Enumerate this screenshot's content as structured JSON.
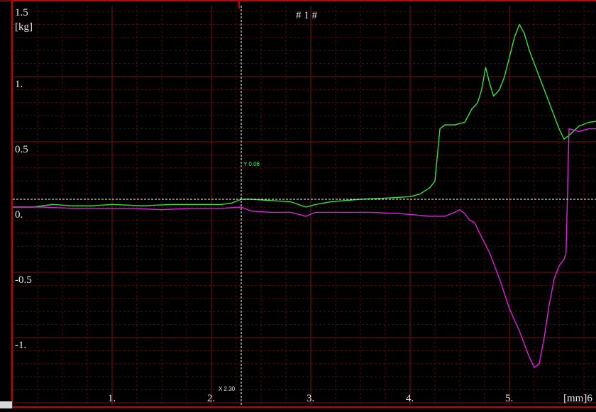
{
  "chart_data": {
    "type": "line",
    "title": "# 1 #",
    "ylabel_value": "1.5",
    "ylabel_unit": "[kg]",
    "xlabel": "[mm]6",
    "xlim": [
      0,
      5.9
    ],
    "ylim": [
      -1.35,
      1.5
    ],
    "y_ticks": [
      {
        "value": 1.0,
        "label": "1."
      },
      {
        "value": 0.5,
        "label": "0.5"
      },
      {
        "value": 0.0,
        "label": "0."
      },
      {
        "value": -0.5,
        "label": "-0.5"
      },
      {
        "value": -1.0,
        "label": "-1."
      }
    ],
    "x_ticks": [
      {
        "value": 1,
        "label": "1."
      },
      {
        "value": 2,
        "label": "2."
      },
      {
        "value": 3,
        "label": "3."
      },
      {
        "value": 4,
        "label": "4."
      },
      {
        "value": 5,
        "label": "5."
      }
    ],
    "grid": true,
    "cursor": {
      "x": 2.3,
      "y": 0.06,
      "x_label": "X 2.30",
      "y_label": "Y 0.06"
    },
    "series": [
      {
        "color": "#33e533",
        "points": [
          [
            0,
            0.0
          ],
          [
            0.2,
            0.0
          ],
          [
            0.4,
            0.02
          ],
          [
            0.6,
            0.01
          ],
          [
            0.8,
            0.01
          ],
          [
            1.0,
            0.02
          ],
          [
            1.3,
            0.01
          ],
          [
            1.6,
            0.02
          ],
          [
            1.9,
            0.02
          ],
          [
            2.1,
            0.02
          ],
          [
            2.2,
            0.03
          ],
          [
            2.3,
            0.06
          ],
          [
            2.4,
            0.06
          ],
          [
            2.6,
            0.05
          ],
          [
            2.8,
            0.04
          ],
          [
            2.95,
            0.0
          ],
          [
            3.05,
            0.02
          ],
          [
            3.2,
            0.04
          ],
          [
            3.5,
            0.06
          ],
          [
            3.8,
            0.07
          ],
          [
            4.0,
            0.08
          ],
          [
            4.1,
            0.1
          ],
          [
            4.2,
            0.15
          ],
          [
            4.25,
            0.2
          ],
          [
            4.3,
            0.6
          ],
          [
            4.35,
            0.63
          ],
          [
            4.45,
            0.63
          ],
          [
            4.55,
            0.65
          ],
          [
            4.62,
            0.75
          ],
          [
            4.68,
            0.8
          ],
          [
            4.72,
            0.9
          ],
          [
            4.76,
            1.07
          ],
          [
            4.8,
            0.95
          ],
          [
            4.84,
            0.85
          ],
          [
            4.9,
            0.9
          ],
          [
            4.95,
            1.0
          ],
          [
            5.0,
            1.15
          ],
          [
            5.05,
            1.3
          ],
          [
            5.1,
            1.4
          ],
          [
            5.15,
            1.33
          ],
          [
            5.2,
            1.2
          ],
          [
            5.3,
            1.0
          ],
          [
            5.4,
            0.8
          ],
          [
            5.45,
            0.7
          ],
          [
            5.5,
            0.6
          ],
          [
            5.55,
            0.52
          ],
          [
            5.6,
            0.55
          ],
          [
            5.7,
            0.62
          ],
          [
            5.8,
            0.65
          ],
          [
            5.9,
            0.66
          ]
        ]
      },
      {
        "color": "#e01ee0",
        "points": [
          [
            0,
            0.0
          ],
          [
            0.3,
            0.0
          ],
          [
            0.6,
            -0.01
          ],
          [
            0.9,
            -0.01
          ],
          [
            1.2,
            -0.01
          ],
          [
            1.5,
            -0.02
          ],
          [
            1.8,
            -0.01
          ],
          [
            2.1,
            -0.01
          ],
          [
            2.3,
            0.0
          ],
          [
            2.4,
            -0.03
          ],
          [
            2.6,
            -0.04
          ],
          [
            2.8,
            -0.04
          ],
          [
            2.95,
            -0.07
          ],
          [
            3.05,
            -0.04
          ],
          [
            3.3,
            -0.04
          ],
          [
            3.6,
            -0.04
          ],
          [
            3.9,
            -0.05
          ],
          [
            4.2,
            -0.07
          ],
          [
            4.35,
            -0.07
          ],
          [
            4.45,
            -0.04
          ],
          [
            4.5,
            -0.02
          ],
          [
            4.55,
            -0.05
          ],
          [
            4.6,
            -0.1
          ],
          [
            4.65,
            -0.12
          ],
          [
            4.7,
            -0.2
          ],
          [
            4.8,
            -0.35
          ],
          [
            4.9,
            -0.55
          ],
          [
            5.0,
            -0.78
          ],
          [
            5.1,
            -0.95
          ],
          [
            5.15,
            -1.05
          ],
          [
            5.2,
            -1.15
          ],
          [
            5.25,
            -1.23
          ],
          [
            5.3,
            -1.2
          ],
          [
            5.35,
            -1.0
          ],
          [
            5.4,
            -0.75
          ],
          [
            5.45,
            -0.55
          ],
          [
            5.5,
            -0.45
          ],
          [
            5.55,
            -0.4
          ],
          [
            5.57,
            -0.35
          ],
          [
            5.6,
            0.6
          ],
          [
            5.7,
            0.58
          ],
          [
            5.8,
            0.6
          ],
          [
            5.9,
            0.6
          ]
        ]
      }
    ]
  }
}
